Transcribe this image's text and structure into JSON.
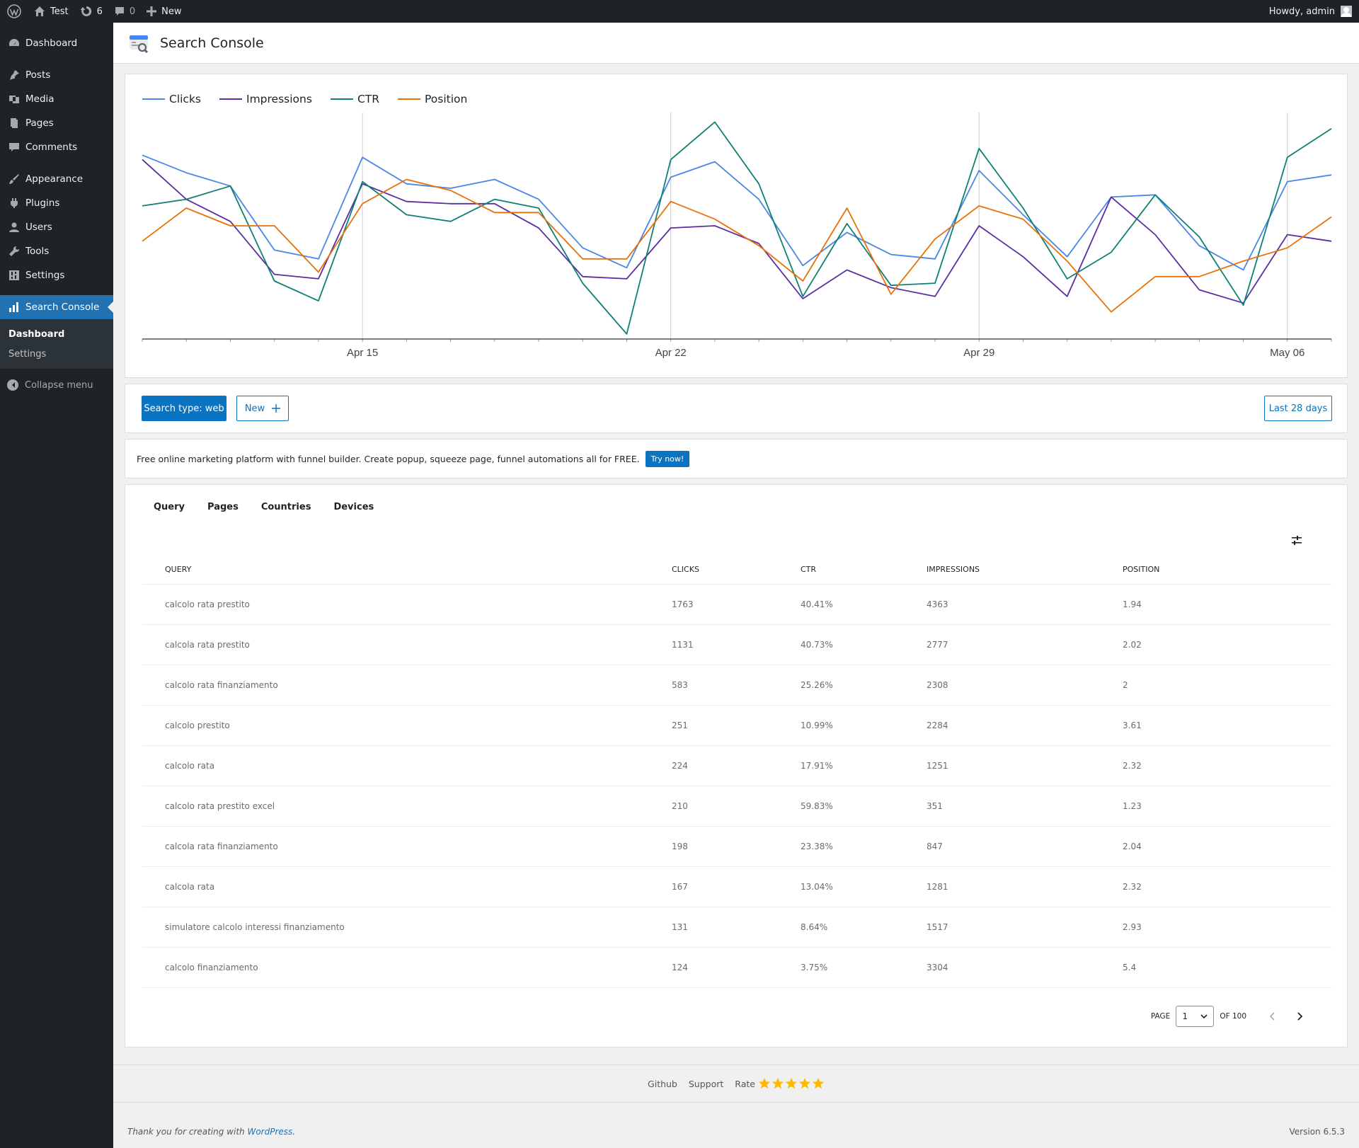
{
  "adminbar": {
    "site_name": "Test",
    "updates_count": "6",
    "comments_count": "0",
    "new_label": "New",
    "howdy": "Howdy, admin"
  },
  "sidebar": {
    "items": [
      {
        "label": "Dashboard",
        "icon": "dashboard-icon"
      },
      {
        "label": "Posts",
        "icon": "pin-icon"
      },
      {
        "label": "Media",
        "icon": "media-icon"
      },
      {
        "label": "Pages",
        "icon": "pages-icon"
      },
      {
        "label": "Comments",
        "icon": "comments-icon"
      },
      {
        "label": "Appearance",
        "icon": "brush-icon"
      },
      {
        "label": "Plugins",
        "icon": "plug-icon"
      },
      {
        "label": "Users",
        "icon": "user-icon"
      },
      {
        "label": "Tools",
        "icon": "wrench-icon"
      },
      {
        "label": "Settings",
        "icon": "settings-icon"
      },
      {
        "label": "Search Console",
        "icon": "chart-bar-icon"
      }
    ],
    "submenu": [
      "Dashboard",
      "Settings"
    ],
    "collapse_label": "Collapse menu"
  },
  "header": {
    "title": "Search Console"
  },
  "chart_data": {
    "type": "line",
    "x_ticks": [
      "Apr 15",
      "Apr 22",
      "Apr 29",
      "May 06"
    ],
    "series": [
      {
        "name": "Clicks",
        "color": "#4a86e8",
        "values": [
          82,
          74,
          68,
          39,
          35,
          81,
          69,
          67,
          71,
          62,
          40,
          31,
          72,
          79,
          62,
          32,
          47,
          37,
          35,
          75,
          55,
          36,
          63,
          64,
          41,
          30,
          70,
          73
        ]
      },
      {
        "name": "Impressions",
        "color": "#5b2da3",
        "values": [
          80,
          62,
          52,
          28,
          26,
          69,
          61,
          60,
          60,
          49,
          27,
          26,
          49,
          50,
          42,
          17,
          30,
          22,
          18,
          50,
          36,
          18,
          63,
          46,
          21,
          15,
          46,
          43
        ]
      },
      {
        "name": "CTR",
        "color": "#0e8074",
        "values": [
          59,
          62,
          68,
          25,
          16,
          70,
          55,
          52,
          62,
          58,
          24,
          1,
          80,
          97,
          69,
          18,
          51,
          23,
          24,
          85,
          58,
          26,
          38,
          64,
          45,
          14,
          81,
          94
        ]
      },
      {
        "name": "Position",
        "color": "#e8710a",
        "values": [
          43,
          58,
          50,
          50,
          29,
          60,
          71,
          66,
          56,
          56,
          35,
          35,
          61,
          53,
          41,
          25,
          58,
          19,
          44,
          59,
          53,
          34,
          11,
          27,
          27,
          34,
          40,
          54
        ]
      }
    ]
  },
  "controls": {
    "search_type": "Search type: web",
    "new_label": "New",
    "range": "Last 28 days"
  },
  "promo": {
    "text": "Free online marketing platform with funnel builder. Create popup, squeeze page, funnel automations all for FREE.",
    "button": "Try now!"
  },
  "tabs": [
    "Query",
    "Pages",
    "Countries",
    "Devices"
  ],
  "table": {
    "columns": [
      "QUERY",
      "CLICKS",
      "CTR",
      "IMPRESSIONS",
      "POSITION"
    ],
    "rows": [
      [
        "calcolo rata prestito",
        "1763",
        "40.41%",
        "4363",
        "1.94"
      ],
      [
        "calcola rata prestito",
        "1131",
        "40.73%",
        "2777",
        "2.02"
      ],
      [
        "calcolo rata finanziamento",
        "583",
        "25.26%",
        "2308",
        "2"
      ],
      [
        "calcolo prestito",
        "251",
        "10.99%",
        "2284",
        "3.61"
      ],
      [
        "calcolo rata",
        "224",
        "17.91%",
        "1251",
        "2.32"
      ],
      [
        "calcolo rata prestito excel",
        "210",
        "59.83%",
        "351",
        "1.23"
      ],
      [
        "calcola rata finanziamento",
        "198",
        "23.38%",
        "847",
        "2.04"
      ],
      [
        "calcola rata",
        "167",
        "13.04%",
        "1281",
        "2.32"
      ],
      [
        "simulatore calcolo interessi finanziamento",
        "131",
        "8.64%",
        "1517",
        "2.93"
      ],
      [
        "calcolo finanziamento",
        "124",
        "3.75%",
        "3304",
        "5.4"
      ]
    ]
  },
  "pager": {
    "page_label": "PAGE",
    "page": "1",
    "of_label": "OF 100"
  },
  "footer_links": {
    "github": "Github",
    "support": "Support",
    "rate": "Rate"
  },
  "footer": {
    "thanks_prefix": "Thank you for creating with",
    "wp_link": "WordPress",
    "thanks_suffix": ".",
    "version": "Version 6.5.3"
  }
}
